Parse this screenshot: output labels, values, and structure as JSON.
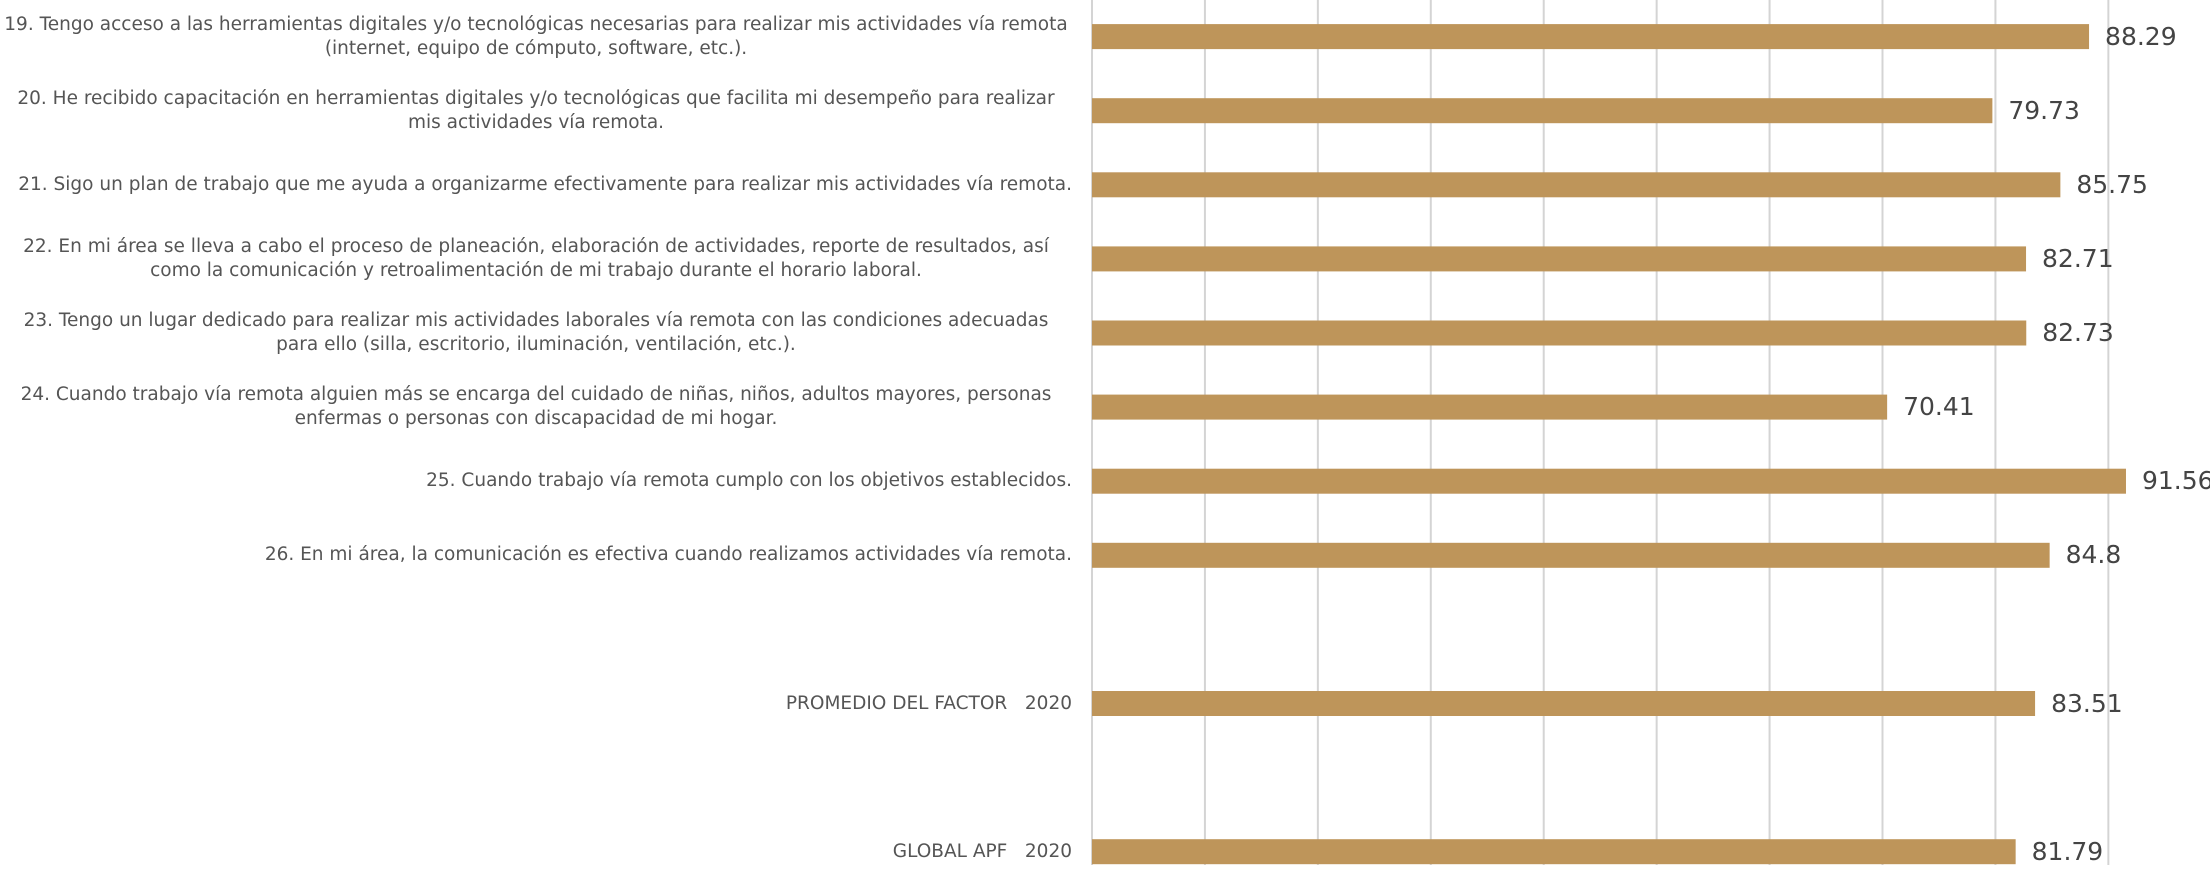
{
  "chart_data": {
    "type": "barh",
    "categories": [
      "19. Tengo acceso a las herramientas digitales y/o tecnológicas necesarias para realizar mis actividades vía remota (internet, equipo de cómputo, software, etc.).",
      "20. He recibido capacitación en herramientas digitales y/o tecnológicas que facilita mi desempeño para realizar mis actividades vía remota.",
      "21. Sigo un plan de trabajo que me ayuda a organizarme efectivamente para realizar mis actividades vía remota.",
      "22. En mi área se lleva a cabo el proceso de planeación, elaboración de actividades, reporte de resultados, así como la comunicación y retroalimentación de mi trabajo durante el horario laboral.",
      "23. Tengo un lugar dedicado para realizar mis actividades laborales vía remota con las condiciones adecuadas para ello (silla, escritorio, iluminación, ventilación, etc.).",
      "24. Cuando trabajo vía remota alguien más se encarga del cuidado de niñas, niños, adultos mayores, personas enfermas o personas con discapacidad de mi hogar.",
      "25. Cuando trabajo vía remota cumplo con los objetivos establecidos.",
      "26. En mi área, la comunicación es efectiva cuando realizamos actividades vía remota.",
      null,
      "PROMEDIO DEL FACTOR   2020",
      null,
      "GLOBAL APF   2020"
    ],
    "values": [
      88.29,
      79.73,
      85.75,
      82.71,
      82.73,
      70.41,
      91.56,
      84.8,
      null,
      83.51,
      null,
      81.79
    ],
    "color": "#be955a",
    "xlim": [
      0,
      99
    ],
    "xticks": [
      0,
      10,
      20,
      30,
      40,
      50,
      60,
      70,
      80,
      90
    ],
    "grid": true
  }
}
